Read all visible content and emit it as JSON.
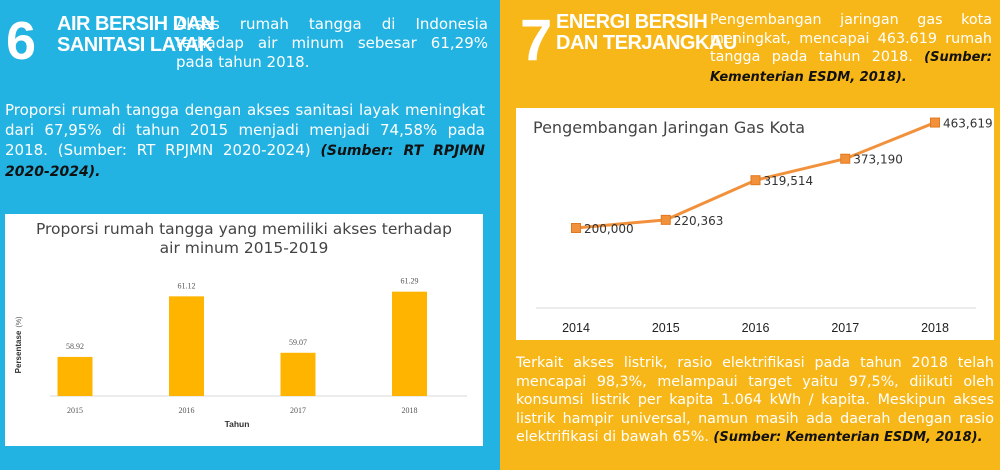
{
  "left": {
    "number": "6",
    "title_line1": "AIR BERSIH DAN",
    "title_line2": "SANITASI LAYAK",
    "intro": "Akses rumah tangga di Indonesia terhadap air minum sebesar 61,29%  pada tahun 2018.",
    "body": "Proporsi rumah tangga dengan akses sanitasi layak meningkat dari 67,95% di tahun 2015 menjadi menjadi 74,58% pada 2018. (Sumber: RT RPJMN 2020-2024)",
    "source": "(Sumber: RT RPJMN 2020-2024).",
    "chart_title_line1": "Proporsi rumah tangga yang memiliki akses terhadap",
    "chart_title_line2": "air minum 2015-2019"
  },
  "right": {
    "number": "7",
    "title_line1": "ENERGI BERSIH",
    "title_line2": "DAN TERJANGKAU",
    "intro": "Pengembangan jaringan gas kota meningkat, mencapai 463.619 rumah tangga pada tahun 2018.",
    "intro_source": "(Sumber: Kementerian ESDM, 2018).",
    "chart_title": "Pengembangan Jaringan Gas Kota",
    "body": "Terkait akses listrik, rasio elektrifikasi pada tahun 2018 telah mencapai 98,3%, melampaui target yaitu 97,5%, diikuti oleh konsumsi listrik per kapita 1.064 kWh / kapita. Meskipun akses listrik hampir universal, namun masih ada daerah dengan rasio elektrifikasi di bawah 65%.",
    "body_source": "(Sumber: Kementerian ESDM, 2018)."
  },
  "colors": {
    "left_bg": "#22b3e2",
    "right_bg": "#f8b719",
    "bar": "#ffb400",
    "line": "#f2913b",
    "marker": "#f2913b"
  },
  "chart_data": [
    {
      "type": "bar",
      "title": "Proporsi rumah tangga yang memiliki akses terhadap air minum 2015-2019",
      "xlabel": "Tahun",
      "ylabel": "Persentase",
      "ylabel_unit": "(%)",
      "categories": [
        "2015",
        "2016",
        "2017",
        "2018"
      ],
      "values": [
        58.92,
        61.12,
        59.07,
        61.29
      ],
      "value_labels": [
        "58.92",
        "61.12",
        "59.07",
        "61.29"
      ],
      "ylim": [
        57.5,
        61.75
      ],
      "grid": false
    },
    {
      "type": "line",
      "title": "Pengembangan Jaringan Gas Kota",
      "categories": [
        "2014",
        "2015",
        "2016",
        "2017",
        "2018"
      ],
      "values": [
        200000,
        220363,
        319514,
        373190,
        463619
      ],
      "value_labels": [
        "200,000",
        "220,363",
        "319,514",
        "373,190",
        "463,619"
      ],
      "ylim": [
        0,
        500000
      ],
      "grid": false
    }
  ]
}
